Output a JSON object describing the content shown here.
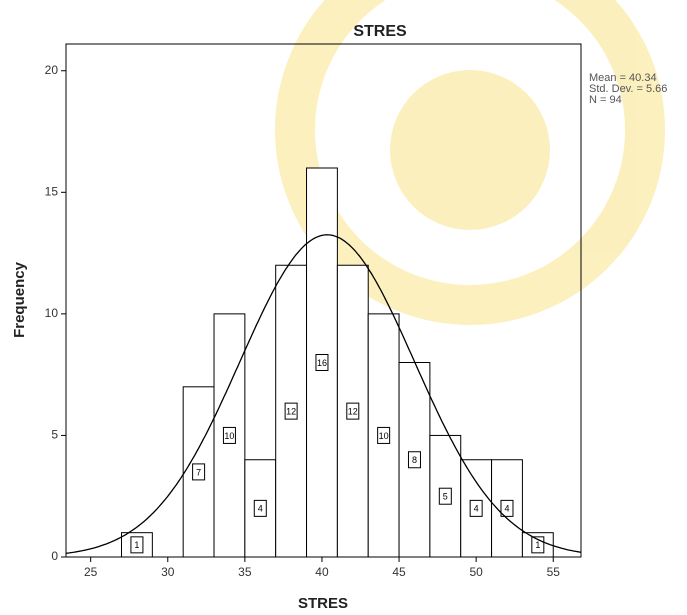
{
  "chart_data": {
    "type": "histogram",
    "title": "STRES",
    "x_label": "STRES",
    "y_label": "Frequency",
    "bins": [
      27,
      29,
      31,
      33,
      35,
      37,
      39,
      41,
      43,
      45,
      47,
      49,
      51,
      53,
      55
    ],
    "values": [
      1,
      0,
      7,
      10,
      4,
      12,
      16,
      12,
      10,
      8,
      5,
      4,
      4,
      1
    ],
    "color": "#ffffff",
    "edge_color": "#000000",
    "xlim": [
      23.4,
      56.8
    ],
    "xticks": [
      25,
      30,
      35,
      40,
      45,
      50,
      55
    ],
    "ylim": [
      0,
      21.1
    ],
    "yticks": [
      0,
      5,
      10,
      15,
      20
    ],
    "stats": [
      {
        "label": "Mean = 40.34",
        "value": 40.34
      },
      {
        "label": "Std. Dev. = 5.66",
        "value": 5.66
      },
      {
        "label": "N = 94",
        "value": 94
      }
    ],
    "curve": "normal"
  }
}
